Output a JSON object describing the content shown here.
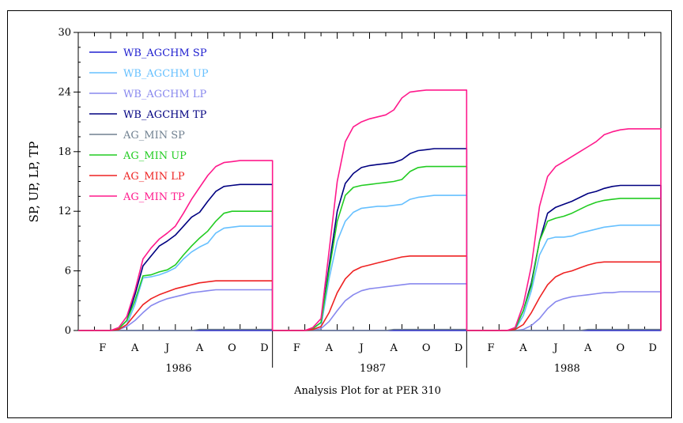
{
  "chart_data": {
    "type": "line",
    "title": "Analysis Plot for at PER 310",
    "ylabel": "SP, UP, LP, TP",
    "ylim": [
      0,
      30
    ],
    "yticks": [
      "0",
      "6",
      "12",
      "18",
      "24",
      "30"
    ],
    "years": [
      "1986",
      "1987",
      "1988"
    ],
    "month_labels": [
      "F",
      "A",
      "J",
      "A",
      "O",
      "D"
    ],
    "legend_position": "top-left",
    "x": [
      0,
      0.5,
      1,
      1.5,
      2,
      2.5,
      3,
      3.5,
      4,
      4.5,
      5,
      5.5,
      6,
      6.5,
      7,
      7.5,
      8,
      8.5,
      9,
      9.5,
      10,
      10.5,
      11,
      11.5,
      12
    ],
    "series": [
      {
        "name": "WB_AGCHM SP",
        "color": "#2020d0",
        "years": [
          [
            0,
            0,
            0,
            0,
            0,
            0,
            0,
            0,
            0,
            0,
            0,
            0,
            0,
            0,
            0,
            0,
            0,
            0,
            0,
            0,
            0,
            0,
            0,
            0,
            0
          ],
          [
            0,
            0,
            0,
            0,
            0,
            0,
            0,
            0,
            0,
            0,
            0,
            0,
            0,
            0,
            0,
            0,
            0,
            0,
            0,
            0,
            0,
            0,
            0,
            0,
            0
          ],
          [
            0,
            0,
            0,
            0,
            0,
            0,
            0,
            0,
            0,
            0,
            0,
            0,
            0,
            0,
            0,
            0,
            0,
            0,
            0,
            0,
            0,
            0,
            0,
            0,
            0
          ]
        ]
      },
      {
        "name": "WB_AGCHM UP",
        "color": "#66c0ff",
        "years": [
          [
            0,
            0,
            0,
            0,
            0,
            0.1,
            0.6,
            2.6,
            5.3,
            5.4,
            5.6,
            5.9,
            6.3,
            7.2,
            7.9,
            8.4,
            8.8,
            9.8,
            10.3,
            10.4,
            10.5,
            10.5,
            10.5,
            10.5,
            10.5
          ],
          [
            0,
            0,
            0,
            0,
            0,
            0.1,
            0.4,
            5.2,
            9.0,
            11.0,
            11.9,
            12.3,
            12.4,
            12.5,
            12.5,
            12.6,
            12.7,
            13.2,
            13.4,
            13.5,
            13.6,
            13.6,
            13.6,
            13.6,
            13.6
          ],
          [
            0,
            0,
            0,
            0,
            0,
            0,
            0.1,
            1.5,
            4.0,
            7.6,
            9.2,
            9.4,
            9.4,
            9.5,
            9.8,
            10.0,
            10.2,
            10.4,
            10.5,
            10.6,
            10.6,
            10.6,
            10.6,
            10.6,
            10.6
          ]
        ]
      },
      {
        "name": "WB_AGCHM LP",
        "color": "#8888ee",
        "years": [
          [
            0,
            0,
            0,
            0,
            0,
            0.1,
            0.4,
            1.0,
            1.8,
            2.5,
            2.9,
            3.2,
            3.4,
            3.6,
            3.8,
            3.9,
            4.0,
            4.1,
            4.1,
            4.1,
            4.1,
            4.1,
            4.1,
            4.1,
            4.1
          ],
          [
            0,
            0,
            0,
            0,
            0,
            0,
            0.2,
            0.9,
            2.0,
            3.0,
            3.6,
            4.0,
            4.2,
            4.3,
            4.4,
            4.5,
            4.6,
            4.7,
            4.7,
            4.7,
            4.7,
            4.7,
            4.7,
            4.7,
            4.7
          ],
          [
            0,
            0,
            0,
            0,
            0,
            0,
            0,
            0.1,
            0.5,
            1.2,
            2.2,
            2.9,
            3.2,
            3.4,
            3.5,
            3.6,
            3.7,
            3.8,
            3.8,
            3.9,
            3.9,
            3.9,
            3.9,
            3.9,
            3.9
          ]
        ]
      },
      {
        "name": "WB_AGCHM TP",
        "color": "#000080",
        "years": [
          [
            0,
            0,
            0,
            0,
            0,
            0.2,
            1.0,
            3.6,
            6.5,
            7.5,
            8.5,
            9.0,
            9.6,
            10.5,
            11.4,
            11.9,
            13.0,
            14.0,
            14.5,
            14.6,
            14.7,
            14.7,
            14.7,
            14.7,
            14.7
          ],
          [
            0,
            0,
            0,
            0,
            0,
            0.2,
            0.8,
            6.5,
            12.0,
            14.8,
            15.8,
            16.4,
            16.6,
            16.7,
            16.8,
            16.9,
            17.2,
            17.8,
            18.1,
            18.2,
            18.3,
            18.3,
            18.3,
            18.3,
            18.3
          ],
          [
            0,
            0,
            0,
            0,
            0,
            0,
            0.2,
            2.0,
            4.8,
            9.0,
            11.8,
            12.4,
            12.7,
            13.0,
            13.4,
            13.8,
            14.0,
            14.3,
            14.5,
            14.6,
            14.6,
            14.6,
            14.6,
            14.6,
            14.6
          ]
        ]
      },
      {
        "name": "AG_MIN SP",
        "color": "#708090",
        "years": [
          [
            0,
            0,
            0,
            0,
            0,
            0,
            0,
            0,
            0,
            0,
            0,
            0,
            0,
            0,
            0,
            0.1,
            0.1,
            0.1,
            0.1,
            0.1,
            0.1,
            0.1,
            0.1,
            0.1,
            0.1
          ],
          [
            0,
            0,
            0,
            0,
            0,
            0,
            0,
            0,
            0,
            0,
            0,
            0,
            0,
            0,
            0,
            0.1,
            0.1,
            0.1,
            0.1,
            0.1,
            0.1,
            0.1,
            0.1,
            0.1,
            0.1
          ],
          [
            0,
            0,
            0,
            0,
            0,
            0,
            0,
            0,
            0,
            0,
            0,
            0,
            0,
            0,
            0,
            0.1,
            0.1,
            0.1,
            0.1,
            0.1,
            0.1,
            0.1,
            0.1,
            0.1,
            0.1
          ]
        ]
      },
      {
        "name": "AG_MIN UP",
        "color": "#22cc22",
        "years": [
          [
            0,
            0,
            0,
            0,
            0,
            0.2,
            1.0,
            3.0,
            5.5,
            5.6,
            5.9,
            6.1,
            6.6,
            7.6,
            8.5,
            9.3,
            10.0,
            11.0,
            11.8,
            12.0,
            12.0,
            12.0,
            12.0,
            12.0,
            12.0
          ],
          [
            0,
            0,
            0,
            0,
            0,
            0.2,
            0.8,
            6.0,
            11.0,
            13.6,
            14.4,
            14.6,
            14.7,
            14.8,
            14.9,
            15.0,
            15.2,
            16.0,
            16.4,
            16.5,
            16.5,
            16.5,
            16.5,
            16.5,
            16.5
          ],
          [
            0,
            0,
            0,
            0,
            0,
            0,
            0.2,
            2.0,
            4.5,
            9.0,
            11.0,
            11.3,
            11.5,
            11.8,
            12.2,
            12.6,
            12.9,
            13.1,
            13.2,
            13.3,
            13.3,
            13.3,
            13.3,
            13.3,
            13.3
          ]
        ]
      },
      {
        "name": "AG_MIN LP",
        "color": "#ee2222",
        "years": [
          [
            0,
            0,
            0,
            0,
            0,
            0.1,
            0.6,
            1.6,
            2.6,
            3.2,
            3.6,
            3.9,
            4.2,
            4.4,
            4.6,
            4.8,
            4.9,
            5.0,
            5.0,
            5.0,
            5.0,
            5.0,
            5.0,
            5.0,
            5.0
          ],
          [
            0,
            0,
            0,
            0,
            0,
            0.1,
            0.4,
            1.8,
            3.8,
            5.2,
            6.0,
            6.4,
            6.6,
            6.8,
            7.0,
            7.2,
            7.4,
            7.5,
            7.5,
            7.5,
            7.5,
            7.5,
            7.5,
            7.5,
            7.5
          ],
          [
            0,
            0,
            0,
            0,
            0,
            0,
            0.1,
            0.6,
            1.8,
            3.3,
            4.6,
            5.4,
            5.8,
            6.0,
            6.3,
            6.6,
            6.8,
            6.9,
            6.9,
            6.9,
            6.9,
            6.9,
            6.9,
            6.9,
            6.9
          ]
        ]
      },
      {
        "name": "AG_MIN TP",
        "color": "#ff1a8c",
        "years": [
          [
            0,
            0,
            0,
            0,
            0,
            0.3,
            1.4,
            4.0,
            7.2,
            8.3,
            9.2,
            9.8,
            10.5,
            11.8,
            13.2,
            14.4,
            15.6,
            16.5,
            16.9,
            17.0,
            17.1,
            17.1,
            17.1,
            17.1,
            17.1
          ],
          [
            0,
            0,
            0,
            0,
            0,
            0.3,
            1.2,
            8.0,
            15.0,
            19.0,
            20.5,
            21.0,
            21.3,
            21.5,
            21.7,
            22.2,
            23.4,
            24.0,
            24.1,
            24.2,
            24.2,
            24.2,
            24.2,
            24.2,
            24.2
          ],
          [
            0,
            0,
            0,
            0,
            0,
            0,
            0.3,
            2.6,
            6.5,
            12.5,
            15.5,
            16.5,
            17.0,
            17.5,
            18.0,
            18.5,
            19.0,
            19.7,
            20.0,
            20.2,
            20.3,
            20.3,
            20.3,
            20.3,
            20.3
          ]
        ]
      }
    ]
  }
}
